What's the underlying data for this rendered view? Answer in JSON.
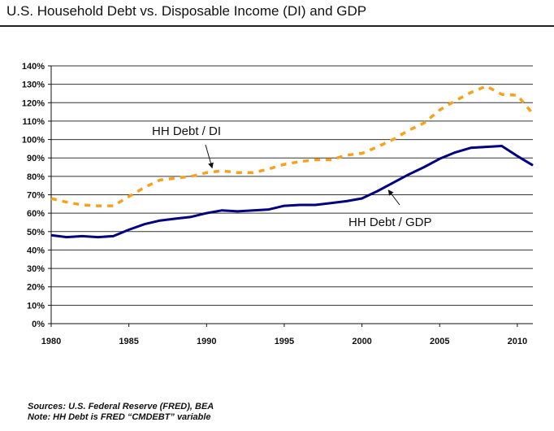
{
  "title": "U.S. Household Debt vs. Disposable Income (DI) and GDP",
  "footer": {
    "sources": "Sources:  U.S. Federal Reserve (FRED), BEA",
    "note": "Note: HH Debt is FRED “CMDEBT” variable"
  },
  "colors": {
    "di_series": "#F9A11B",
    "gdp_series": "#000080",
    "gridline": "#333333",
    "axis": "#111111"
  },
  "chart_data": {
    "type": "line",
    "title": "U.S. Household Debt vs. Disposable Income (DI) and GDP",
    "xlabel": "",
    "ylabel": "",
    "xlim": [
      1980,
      2011
    ],
    "ylim": [
      0,
      140
    ],
    "grid": true,
    "y_ticks": [
      0,
      10,
      20,
      30,
      40,
      50,
      60,
      70,
      80,
      90,
      100,
      110,
      120,
      130,
      140
    ],
    "y_tick_labels": [
      "0%",
      "10%",
      "20%",
      "30%",
      "40%",
      "50%",
      "60%",
      "70%",
      "80%",
      "90%",
      "100%",
      "110%",
      "120%",
      "130%",
      "140%"
    ],
    "x_ticks": [
      1980,
      1985,
      1990,
      1995,
      2000,
      2005,
      2010
    ],
    "x_tick_labels": [
      "1980",
      "1985",
      "1990",
      "1995",
      "2000",
      "2005",
      "2010"
    ],
    "x": [
      1980,
      1981,
      1982,
      1983,
      1984,
      1985,
      1986,
      1987,
      1988,
      1989,
      1990,
      1991,
      1992,
      1993,
      1994,
      1995,
      1996,
      1997,
      1998,
      1999,
      2000,
      2001,
      2002,
      2003,
      2004,
      2005,
      2006,
      2007,
      2008,
      2009,
      2010,
      2011
    ],
    "series": [
      {
        "name": "HH Debt / DI",
        "style": "dashed",
        "values": [
          68,
          66,
          64.5,
          64,
          64,
          69,
          74,
          78,
          79,
          80,
          82,
          83,
          82,
          82,
          84,
          86.5,
          88,
          89,
          89,
          91.5,
          92.5,
          96,
          100,
          105,
          109,
          116,
          121,
          125.5,
          129,
          124.5,
          124,
          114
        ]
      },
      {
        "name": "HH Debt / GDP",
        "style": "solid",
        "values": [
          48,
          47,
          47.5,
          47,
          47.5,
          51,
          54,
          56,
          57,
          58,
          60,
          61.5,
          61,
          61.5,
          62,
          64,
          64.5,
          64.5,
          65.5,
          66.5,
          68,
          72,
          76.5,
          81,
          85,
          89.5,
          93,
          95.5,
          96,
          96.5,
          91,
          86
        ]
      }
    ],
    "annotations": [
      {
        "text": "HH Debt / DI",
        "series": "HH Debt / DI",
        "points_to_year": 1990.2
      },
      {
        "text": "HH Debt / GDP",
        "series": "HH Debt / GDP",
        "points_to_year": 2001.5
      }
    ],
    "legend": "none (inline annotations)"
  }
}
